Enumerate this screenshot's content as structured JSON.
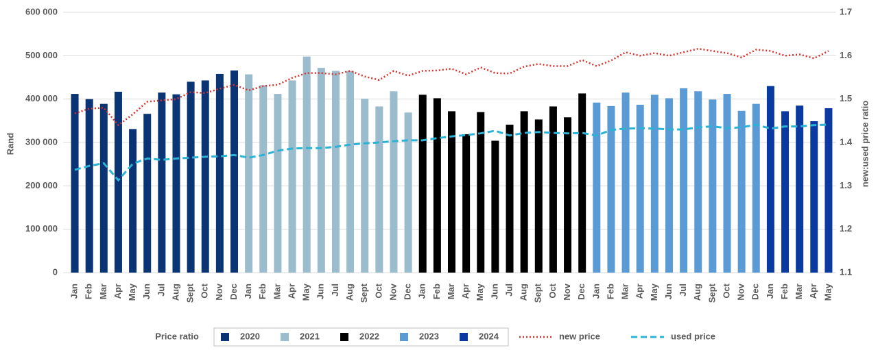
{
  "chart_data": {
    "type": "bar-line",
    "y_label": "Rand",
    "y2_label": "new:used price ratio",
    "legend_title": "Price ratio",
    "legend": "bottom",
    "grid": true,
    "ylim": [
      0,
      600000
    ],
    "yticks": [
      {
        "value": 0,
        "label": "0"
      },
      {
        "value": 100000,
        "label": "100 000"
      },
      {
        "value": 200000,
        "label": "200 000"
      },
      {
        "value": 300000,
        "label": "300 000"
      },
      {
        "value": 400000,
        "label": "400 000"
      },
      {
        "value": 500000,
        "label": "500 000"
      },
      {
        "value": 600000,
        "label": "600 000"
      }
    ],
    "y2lim": [
      1.1,
      1.7
    ],
    "y2ticks": [
      1.1,
      1.2,
      1.3,
      1.4,
      1.5,
      1.6,
      1.7
    ],
    "categories": [
      "Jan",
      "Feb",
      "Mar",
      "Apr",
      "May",
      "Jun",
      "Jul",
      "Aug",
      "Sept",
      "Oct",
      "Nov",
      "Dec",
      "Jan",
      "Feb",
      "Mar",
      "Apr",
      "May",
      "Jun",
      "Jul",
      "Aug",
      "Sept",
      "Oct",
      "Nov",
      "Dec",
      "Jan",
      "Feb",
      "Mar",
      "Apr",
      "May",
      "Jun",
      "Jul",
      "Aug",
      "Sept",
      "Oct",
      "Nov",
      "Dec",
      "Jan",
      "Feb",
      "Mar",
      "Apr",
      "May",
      "Jun",
      "Jul",
      "Aug",
      "Sept",
      "Oct",
      "Nov",
      "Dec",
      "Jan",
      "Feb",
      "Mar",
      "Apr",
      "May"
    ],
    "series": [
      {
        "name": "2020",
        "kind": "bar",
        "color": "#0b3474",
        "values": [
          412000,
          400000,
          389000,
          417000,
          331000,
          366000,
          415000,
          411000,
          440000,
          443000,
          458000,
          466000,
          null,
          null,
          null,
          null,
          null,
          null,
          null,
          null,
          null,
          null,
          null,
          null,
          null,
          null,
          null,
          null,
          null,
          null,
          null,
          null,
          null,
          null,
          null,
          null,
          null,
          null,
          null,
          null,
          null,
          null,
          null,
          null,
          null,
          null,
          null,
          null,
          null,
          null,
          null,
          null,
          null
        ]
      },
      {
        "name": "2021",
        "kind": "bar",
        "color": "#9bbccc",
        "values": [
          null,
          null,
          null,
          null,
          null,
          null,
          null,
          null,
          null,
          null,
          null,
          null,
          457000,
          432000,
          412000,
          443000,
          498000,
          472000,
          465000,
          465000,
          401000,
          383000,
          418000,
          369000,
          null,
          null,
          null,
          null,
          null,
          null,
          null,
          null,
          null,
          null,
          null,
          null,
          null,
          null,
          null,
          null,
          null,
          null,
          null,
          null,
          null,
          null,
          null,
          null,
          null,
          null,
          null,
          null,
          null
        ]
      },
      {
        "name": "2022",
        "kind": "bar",
        "color": "#000000",
        "values": [
          null,
          null,
          null,
          null,
          null,
          null,
          null,
          null,
          null,
          null,
          null,
          null,
          null,
          null,
          null,
          null,
          null,
          null,
          null,
          null,
          null,
          null,
          null,
          null,
          410000,
          402000,
          372000,
          319000,
          370000,
          304000,
          341000,
          372000,
          353000,
          383000,
          358000,
          413000,
          null,
          null,
          null,
          null,
          null,
          null,
          null,
          null,
          null,
          null,
          null,
          null,
          null,
          null,
          null,
          null,
          null
        ]
      },
      {
        "name": "2023",
        "kind": "bar",
        "color": "#5b9bd5",
        "values": [
          null,
          null,
          null,
          null,
          null,
          null,
          null,
          null,
          null,
          null,
          null,
          null,
          null,
          null,
          null,
          null,
          null,
          null,
          null,
          null,
          null,
          null,
          null,
          null,
          null,
          null,
          null,
          null,
          null,
          null,
          null,
          null,
          null,
          null,
          null,
          null,
          392000,
          384000,
          415000,
          387000,
          410000,
          402000,
          425000,
          418000,
          399000,
          412000,
          373000,
          389000,
          null,
          null,
          null,
          null,
          null
        ]
      },
      {
        "name": "2024",
        "kind": "bar",
        "color": "#0a3aa0",
        "values": [
          null,
          null,
          null,
          null,
          null,
          null,
          null,
          null,
          null,
          null,
          null,
          null,
          null,
          null,
          null,
          null,
          null,
          null,
          null,
          null,
          null,
          null,
          null,
          null,
          null,
          null,
          null,
          null,
          null,
          null,
          null,
          null,
          null,
          null,
          null,
          null,
          null,
          null,
          null,
          null,
          null,
          null,
          null,
          null,
          null,
          null,
          null,
          null,
          430000,
          372000,
          385000,
          349000,
          379000
        ]
      },
      {
        "name": "new price",
        "kind": "line",
        "axis": "y2",
        "color": "#d9312b",
        "dash": "dotted",
        "values": [
          1.467,
          1.478,
          1.48,
          1.44,
          1.465,
          1.494,
          1.497,
          1.5,
          1.516,
          1.514,
          1.524,
          1.533,
          1.52,
          1.53,
          1.533,
          1.549,
          1.56,
          1.56,
          1.557,
          1.565,
          1.552,
          1.544,
          1.565,
          1.554,
          1.565,
          1.566,
          1.57,
          1.557,
          1.573,
          1.56,
          1.559,
          1.575,
          1.581,
          1.576,
          1.576,
          1.59,
          1.576,
          1.589,
          1.608,
          1.6,
          1.606,
          1.6,
          1.608,
          1.616,
          1.611,
          1.606,
          1.596,
          1.614,
          1.611,
          1.6,
          1.603,
          1.594,
          1.611
        ]
      },
      {
        "name": "used price",
        "kind": "line",
        "axis": "y2",
        "color": "#2bb3d6",
        "dash": "dashed",
        "values": [
          1.337,
          1.346,
          1.352,
          1.313,
          1.351,
          1.363,
          1.36,
          1.363,
          1.365,
          1.367,
          1.368,
          1.371,
          1.365,
          1.371,
          1.381,
          1.386,
          1.387,
          1.387,
          1.39,
          1.395,
          1.398,
          1.4,
          1.403,
          1.405,
          1.405,
          1.41,
          1.414,
          1.417,
          1.421,
          1.427,
          1.416,
          1.422,
          1.424,
          1.422,
          1.421,
          1.422,
          1.416,
          1.429,
          1.432,
          1.433,
          1.432,
          1.43,
          1.43,
          1.435,
          1.437,
          1.433,
          1.435,
          1.441,
          1.432,
          1.437,
          1.437,
          1.44,
          1.441
        ]
      }
    ]
  }
}
